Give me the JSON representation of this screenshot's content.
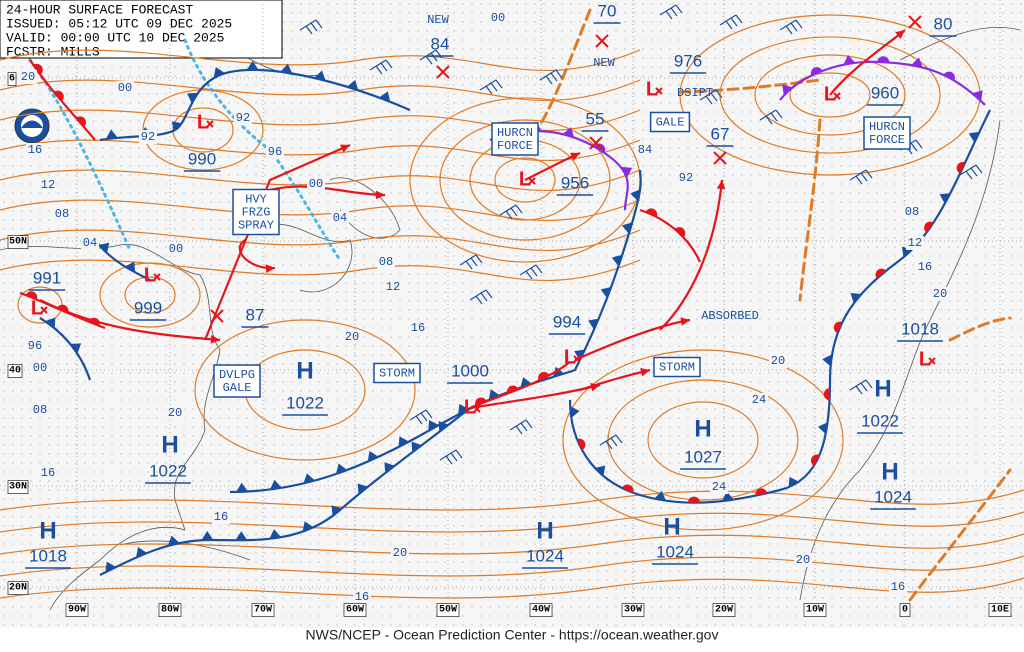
{
  "header": {
    "lines": [
      "24-HOUR SURFACE FORECAST",
      "ISSUED: 05:12 UTC 09 DEC 2025",
      "VALID:  00:00 UTC 10 DEC 2025",
      "FCSTR:  MILLS"
    ]
  },
  "footer": "NWS/NCEP - Ocean Prediction Center - https://ocean.weather.gov",
  "centers": [
    {
      "symbol": "H",
      "pressure": 1022
    },
    {
      "symbol": "H",
      "pressure": 1022
    },
    {
      "symbol": "H",
      "pressure": 1018
    },
    {
      "symbol": "H",
      "pressure": 1024
    },
    {
      "symbol": "H",
      "pressure": 1024
    },
    {
      "symbol": "H",
      "pressure": 1027
    },
    {
      "symbol": "H",
      "pressure": 1022
    },
    {
      "symbol": "H",
      "pressure": 1024
    },
    {
      "symbol": "L",
      "pressure": 990
    },
    {
      "symbol": "L",
      "pressure": 991
    },
    {
      "symbol": "L",
      "pressure": 999
    },
    {
      "symbol": "L",
      "pressure": 976
    },
    {
      "symbol": "L",
      "pressure": 960
    },
    {
      "symbol": "L",
      "pressure": 956
    },
    {
      "symbol": "L",
      "pressure": 994
    },
    {
      "symbol": "L",
      "pressure": 1000
    },
    {
      "symbol": "L",
      "pressure": 1018
    },
    {
      "pressure": 87
    },
    {
      "pressure": 84
    },
    {
      "pressure": 70
    },
    {
      "pressure": 55
    },
    {
      "pressure": 67
    },
    {
      "pressure": 80
    }
  ],
  "warnings": [
    [
      "HURCN",
      "FORCE"
    ],
    [
      "GALE"
    ],
    [
      "HURCN",
      "FORCE"
    ],
    [
      "HVY",
      "FRZG",
      "SPRAY"
    ],
    [
      "DVLPG",
      "GALE"
    ],
    [
      "STORM"
    ],
    [
      "STORM"
    ]
  ],
  "notes": [
    "NEW",
    "NEW",
    "DSIPT",
    "ABSORBED"
  ],
  "isobar_labels": [
    "00",
    "92",
    "92",
    "16",
    "12",
    "08",
    "04",
    "00",
    "96",
    "00",
    "04",
    "08",
    "12",
    "16",
    "20",
    "96",
    "00",
    "08",
    "20",
    "16",
    "16",
    "20",
    "16",
    "00",
    "84",
    "92",
    "20",
    "24",
    "24",
    "08",
    "12",
    "16",
    "20",
    "20",
    "16",
    "20"
  ],
  "latitudes": [
    "6",
    "50N",
    "40",
    "30N",
    "20N"
  ],
  "longitudes": [
    "90W",
    "80W",
    "70W",
    "60W",
    "50W",
    "40W",
    "30W",
    "20W",
    "10W",
    "0",
    "10E"
  ]
}
